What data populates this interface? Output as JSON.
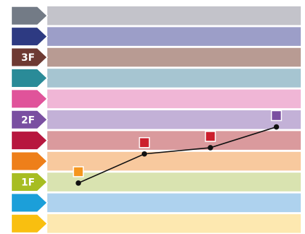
{
  "rows": [
    {
      "label": "",
      "tab_color": "#737b86",
      "band_color": "#c3c3ca"
    },
    {
      "label": "",
      "tab_color": "#2d3a82",
      "band_color": "#9c9ec8"
    },
    {
      "label": "3F",
      "tab_color": "#6e3a33",
      "band_color": "#b89b93"
    },
    {
      "label": "",
      "tab_color": "#2a8b98",
      "band_color": "#a6c5d1"
    },
    {
      "label": "",
      "tab_color": "#e0539a",
      "band_color": "#f0b6d6"
    },
    {
      "label": "2F",
      "tab_color": "#7a4fa1",
      "band_color": "#c3b1d7"
    },
    {
      "label": "",
      "tab_color": "#b7163e",
      "band_color": "#da9a9d"
    },
    {
      "label": "",
      "tab_color": "#ee7f1a",
      "band_color": "#f8c99e"
    },
    {
      "label": "1F",
      "tab_color": "#a7bd22",
      "band_color": "#d9e3b0"
    },
    {
      "label": "",
      "tab_color": "#1c9fd9",
      "band_color": "#aed2ee"
    },
    {
      "label": "",
      "tab_color": "#f9bf10",
      "band_color": "#fde8b0"
    }
  ],
  "path": {
    "line_color": "#111111",
    "points": [
      {
        "row": 8.5,
        "step": 0,
        "marker_color": "#f4961e"
      },
      {
        "row": 7.1,
        "step": 1,
        "marker_color": "#cc1f2d"
      },
      {
        "row": 6.8,
        "step": 2,
        "marker_color": "#cc1f2d"
      },
      {
        "row": 5.8,
        "step": 3,
        "marker_color": "#7a4fa1"
      }
    ]
  }
}
